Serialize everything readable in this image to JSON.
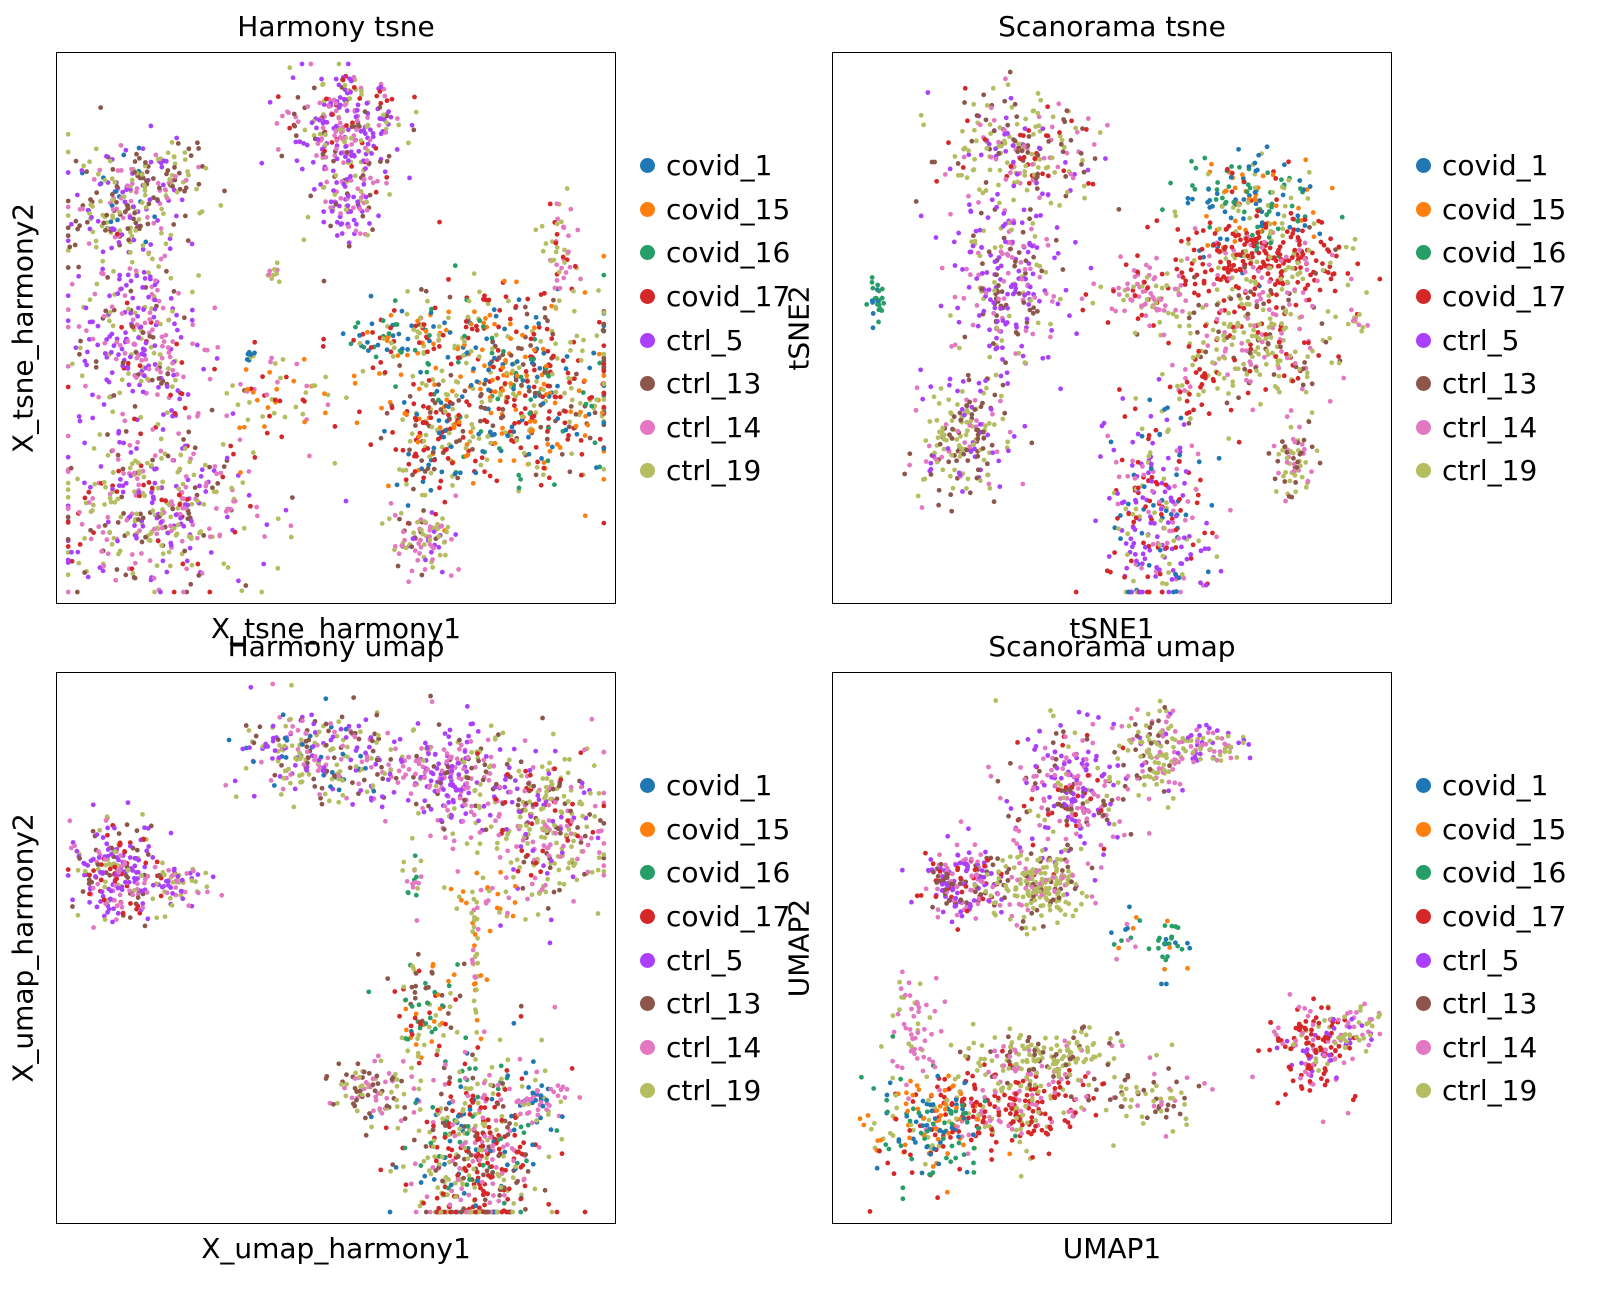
{
  "palette": {
    "covid_1": "#1f77b4",
    "covid_15": "#ff7f0e",
    "covid_16": "#279e68",
    "covid_17": "#d62728",
    "ctrl_5": "#aa40fc",
    "ctrl_13": "#8c564b",
    "ctrl_14": "#e377c2",
    "ctrl_19": "#b5bd61"
  },
  "chart_data": [
    {
      "type": "scatter",
      "title": "Harmony tsne",
      "xlabel": "X_tsne_harmony1",
      "ylabel": "X_tsne_harmony2",
      "grid": false,
      "ticks": false,
      "legend_position": "right",
      "legend": [
        "covid_1",
        "covid_15",
        "covid_16",
        "covid_17",
        "ctrl_5",
        "ctrl_13",
        "ctrl_14",
        "ctrl_19"
      ],
      "clusters": [
        {
          "x": 0.52,
          "y": 0.87,
          "sx": 0.05,
          "sy": 0.05,
          "n": 260,
          "mix": {
            "ctrl_5": 0.35,
            "ctrl_14": 0.25,
            "ctrl_19": 0.2,
            "ctrl_13": 0.1,
            "covid_17": 0.1
          }
        },
        {
          "x": 0.52,
          "y": 0.73,
          "sx": 0.03,
          "sy": 0.04,
          "n": 110,
          "mix": {
            "ctrl_5": 0.4,
            "ctrl_14": 0.3,
            "ctrl_19": 0.15,
            "ctrl_13": 0.15
          }
        },
        {
          "x": 0.11,
          "y": 0.72,
          "sx": 0.05,
          "sy": 0.06,
          "n": 200,
          "mix": {
            "ctrl_13": 0.3,
            "ctrl_19": 0.25,
            "ctrl_5": 0.2,
            "ctrl_14": 0.15,
            "covid_1": 0.1
          }
        },
        {
          "x": 0.18,
          "y": 0.77,
          "sx": 0.05,
          "sy": 0.03,
          "n": 90,
          "mix": {
            "ctrl_19": 0.4,
            "ctrl_13": 0.3,
            "ctrl_14": 0.2,
            "ctrl_5": 0.1
          }
        },
        {
          "x": 0.15,
          "y": 0.48,
          "sx": 0.06,
          "sy": 0.09,
          "n": 320,
          "mix": {
            "ctrl_5": 0.4,
            "ctrl_14": 0.25,
            "ctrl_13": 0.15,
            "ctrl_19": 0.15,
            "covid_17": 0.05
          }
        },
        {
          "x": 0.18,
          "y": 0.17,
          "sx": 0.09,
          "sy": 0.07,
          "n": 420,
          "mix": {
            "ctrl_19": 0.3,
            "ctrl_5": 0.25,
            "ctrl_14": 0.2,
            "ctrl_13": 0.15,
            "covid_17": 0.1
          }
        },
        {
          "x": 0.83,
          "y": 0.4,
          "sx": 0.1,
          "sy": 0.09,
          "n": 560,
          "mix": {
            "covid_17": 0.25,
            "covid_1": 0.15,
            "covid_15": 0.15,
            "covid_16": 0.1,
            "ctrl_19": 0.2,
            "ctrl_13": 0.15
          }
        },
        {
          "x": 0.63,
          "y": 0.48,
          "sx": 0.06,
          "sy": 0.03,
          "n": 120,
          "mix": {
            "covid_15": 0.25,
            "covid_16": 0.2,
            "covid_1": 0.2,
            "ctrl_19": 0.2,
            "covid_17": 0.15
          }
        },
        {
          "x": 0.68,
          "y": 0.3,
          "sx": 0.05,
          "sy": 0.06,
          "n": 160,
          "mix": {
            "covid_17": 0.3,
            "ctrl_19": 0.25,
            "covid_1": 0.15,
            "ctrl_13": 0.15,
            "covid_15": 0.15
          }
        },
        {
          "x": 0.66,
          "y": 0.11,
          "sx": 0.03,
          "sy": 0.03,
          "n": 90,
          "mix": {
            "ctrl_14": 0.35,
            "ctrl_19": 0.3,
            "ctrl_13": 0.2,
            "ctrl_5": 0.15
          }
        },
        {
          "x": 0.9,
          "y": 0.63,
          "sx": 0.02,
          "sy": 0.05,
          "n": 50,
          "mix": {
            "ctrl_14": 0.5,
            "ctrl_19": 0.3,
            "covid_17": 0.2
          }
        },
        {
          "x": 0.39,
          "y": 0.37,
          "sx": 0.06,
          "sy": 0.05,
          "n": 70,
          "mix": {
            "ctrl_19": 0.3,
            "covid_17": 0.25,
            "ctrl_14": 0.2,
            "covid_15": 0.25
          }
        },
        {
          "x": 0.39,
          "y": 0.6,
          "sx": 0.005,
          "sy": 0.01,
          "n": 10,
          "mix": {
            "ctrl_14": 0.5,
            "ctrl_19": 0.5
          }
        },
        {
          "x": 0.35,
          "y": 0.45,
          "sx": 0.005,
          "sy": 0.005,
          "n": 8,
          "mix": {
            "covid_1": 0.5,
            "ctrl_19": 0.5
          }
        }
      ]
    },
    {
      "type": "scatter",
      "title": "Scanorama tsne",
      "xlabel": "tSNE1",
      "ylabel": "tSNE2",
      "grid": false,
      "ticks": false,
      "legend_position": "right",
      "legend": [
        "covid_1",
        "covid_15",
        "covid_16",
        "covid_17",
        "ctrl_5",
        "ctrl_13",
        "ctrl_14",
        "ctrl_19"
      ],
      "clusters": [
        {
          "x": 0.33,
          "y": 0.82,
          "sx": 0.07,
          "sy": 0.05,
          "n": 260,
          "mix": {
            "ctrl_19": 0.3,
            "ctrl_14": 0.2,
            "ctrl_13": 0.2,
            "ctrl_5": 0.15,
            "covid_17": 0.15
          }
        },
        {
          "x": 0.31,
          "y": 0.58,
          "sx": 0.05,
          "sy": 0.08,
          "n": 260,
          "mix": {
            "ctrl_5": 0.45,
            "ctrl_13": 0.2,
            "ctrl_14": 0.2,
            "ctrl_19": 0.15
          }
        },
        {
          "x": 0.23,
          "y": 0.3,
          "sx": 0.04,
          "sy": 0.06,
          "n": 200,
          "mix": {
            "ctrl_19": 0.35,
            "ctrl_13": 0.25,
            "ctrl_14": 0.2,
            "ctrl_5": 0.2
          }
        },
        {
          "x": 0.75,
          "y": 0.73,
          "sx": 0.06,
          "sy": 0.05,
          "n": 200,
          "mix": {
            "covid_1": 0.3,
            "covid_16": 0.25,
            "covid_15": 0.2,
            "ctrl_19": 0.15,
            "covid_17": 0.1
          }
        },
        {
          "x": 0.78,
          "y": 0.62,
          "sx": 0.08,
          "sy": 0.035,
          "n": 260,
          "mix": {
            "covid_17": 0.7,
            "ctrl_19": 0.15,
            "ctrl_14": 0.15
          }
        },
        {
          "x": 0.76,
          "y": 0.49,
          "sx": 0.07,
          "sy": 0.07,
          "n": 300,
          "mix": {
            "ctrl_19": 0.45,
            "ctrl_14": 0.25,
            "ctrl_13": 0.15,
            "covid_17": 0.15
          }
        },
        {
          "x": 0.56,
          "y": 0.56,
          "sx": 0.04,
          "sy": 0.03,
          "n": 90,
          "mix": {
            "ctrl_14": 0.6,
            "covid_17": 0.2,
            "ctrl_19": 0.2
          }
        },
        {
          "x": 0.58,
          "y": 0.17,
          "sx": 0.05,
          "sy": 0.09,
          "n": 300,
          "mix": {
            "ctrl_5": 0.3,
            "covid_17": 0.25,
            "ctrl_19": 0.15,
            "ctrl_14": 0.15,
            "covid_1": 0.15
          }
        },
        {
          "x": 0.83,
          "y": 0.26,
          "sx": 0.02,
          "sy": 0.04,
          "n": 70,
          "mix": {
            "ctrl_19": 0.35,
            "ctrl_13": 0.35,
            "ctrl_14": 0.3
          }
        },
        {
          "x": 0.08,
          "y": 0.55,
          "sx": 0.007,
          "sy": 0.02,
          "n": 25,
          "mix": {
            "covid_16": 0.75,
            "covid_1": 0.25
          }
        },
        {
          "x": 0.94,
          "y": 0.51,
          "sx": 0.006,
          "sy": 0.01,
          "n": 12,
          "mix": {
            "ctrl_19": 0.6,
            "ctrl_14": 0.4
          }
        },
        {
          "x": 0.65,
          "y": 0.41,
          "sx": 0.03,
          "sy": 0.03,
          "n": 30,
          "mix": {
            "covid_17": 0.5,
            "ctrl_19": 0.5
          }
        }
      ]
    },
    {
      "type": "scatter",
      "title": "Harmony umap",
      "xlabel": "X_umap_harmony1",
      "ylabel": "X_umap_harmony2",
      "grid": false,
      "ticks": false,
      "legend_position": "right",
      "legend": [
        "covid_1",
        "covid_15",
        "covid_16",
        "covid_17",
        "ctrl_5",
        "ctrl_13",
        "ctrl_14",
        "ctrl_19"
      ],
      "clusters": [
        {
          "x": 0.11,
          "y": 0.64,
          "sx": 0.04,
          "sy": 0.045,
          "n": 250,
          "mix": {
            "ctrl_5": 0.35,
            "ctrl_14": 0.2,
            "covid_17": 0.15,
            "ctrl_13": 0.15,
            "ctrl_19": 0.15
          }
        },
        {
          "x": 0.22,
          "y": 0.62,
          "sx": 0.03,
          "sy": 0.02,
          "n": 60,
          "mix": {
            "ctrl_5": 0.4,
            "ctrl_19": 0.3,
            "ctrl_14": 0.3
          }
        },
        {
          "x": 0.48,
          "y": 0.85,
          "sx": 0.08,
          "sy": 0.04,
          "n": 280,
          "mix": {
            "ctrl_19": 0.3,
            "ctrl_14": 0.2,
            "ctrl_13": 0.2,
            "ctrl_5": 0.2,
            "covid_1": 0.1
          }
        },
        {
          "x": 0.72,
          "y": 0.81,
          "sx": 0.06,
          "sy": 0.05,
          "n": 280,
          "mix": {
            "ctrl_5": 0.35,
            "ctrl_14": 0.3,
            "ctrl_19": 0.2,
            "ctrl_13": 0.15
          }
        },
        {
          "x": 0.89,
          "y": 0.72,
          "sx": 0.05,
          "sy": 0.07,
          "n": 300,
          "mix": {
            "ctrl_19": 0.4,
            "ctrl_14": 0.25,
            "ctrl_13": 0.15,
            "covid_17": 0.1,
            "ctrl_5": 0.1
          }
        },
        {
          "x": 0.75,
          "y": 0.14,
          "sx": 0.06,
          "sy": 0.09,
          "n": 520,
          "mix": {
            "ctrl_19": 0.25,
            "covid_17": 0.25,
            "ctrl_13": 0.15,
            "ctrl_14": 0.15,
            "covid_1": 0.1,
            "covid_16": 0.1
          }
        },
        {
          "x": 0.56,
          "y": 0.24,
          "sx": 0.04,
          "sy": 0.03,
          "n": 90,
          "mix": {
            "ctrl_19": 0.35,
            "ctrl_13": 0.35,
            "ctrl_14": 0.3
          }
        },
        {
          "x": 0.87,
          "y": 0.23,
          "sx": 0.025,
          "sy": 0.025,
          "n": 60,
          "mix": {
            "ctrl_14": 0.5,
            "ctrl_19": 0.25,
            "covid_1": 0.25
          }
        },
        {
          "x": 0.65,
          "y": 0.4,
          "sx": 0.04,
          "sy": 0.05,
          "n": 90,
          "mix": {
            "covid_16": 0.2,
            "covid_15": 0.2,
            "ctrl_19": 0.2,
            "covid_17": 0.2,
            "ctrl_13": 0.2
          }
        },
        {
          "x": 0.76,
          "y": 0.59,
          "sx": 0.03,
          "sy": 0.03,
          "n": 40,
          "mix": {
            "ctrl_19": 0.4,
            "ctrl_14": 0.3,
            "covid_15": 0.3
          }
        },
        {
          "x": 0.75,
          "y": 0.48,
          "sx": 0.005,
          "sy": 0.06,
          "n": 30,
          "mix": {
            "ctrl_19": 0.5,
            "covid_15": 0.25,
            "ctrl_14": 0.25
          }
        },
        {
          "x": 0.64,
          "y": 0.63,
          "sx": 0.01,
          "sy": 0.03,
          "n": 20,
          "mix": {
            "ctrl_14": 0.5,
            "ctrl_19": 0.25,
            "covid_16": 0.25
          }
        }
      ]
    },
    {
      "type": "scatter",
      "title": "Scanorama umap",
      "xlabel": "UMAP1",
      "ylabel": "UMAP2",
      "grid": false,
      "ticks": false,
      "legend_position": "right",
      "legend": [
        "covid_1",
        "covid_15",
        "covid_16",
        "covid_17",
        "ctrl_5",
        "ctrl_13",
        "ctrl_14",
        "ctrl_19"
      ],
      "clusters": [
        {
          "x": 0.42,
          "y": 0.78,
          "sx": 0.05,
          "sy": 0.07,
          "n": 280,
          "mix": {
            "ctrl_5": 0.3,
            "ctrl_14": 0.3,
            "covid_17": 0.15,
            "ctrl_13": 0.15,
            "ctrl_19": 0.1
          }
        },
        {
          "x": 0.57,
          "y": 0.85,
          "sx": 0.03,
          "sy": 0.04,
          "n": 120,
          "mix": {
            "ctrl_19": 0.4,
            "ctrl_14": 0.3,
            "ctrl_13": 0.2,
            "ctrl_5": 0.1
          }
        },
        {
          "x": 0.66,
          "y": 0.87,
          "sx": 0.04,
          "sy": 0.02,
          "n": 80,
          "mix": {
            "ctrl_19": 0.4,
            "ctrl_14": 0.3,
            "ctrl_5": 0.3
          }
        },
        {
          "x": 0.23,
          "y": 0.62,
          "sx": 0.04,
          "sy": 0.035,
          "n": 200,
          "mix": {
            "ctrl_5": 0.3,
            "ctrl_14": 0.25,
            "ctrl_13": 0.25,
            "covid_17": 0.2
          }
        },
        {
          "x": 0.37,
          "y": 0.61,
          "sx": 0.04,
          "sy": 0.03,
          "n": 200,
          "mix": {
            "ctrl_19": 0.7,
            "ctrl_14": 0.15,
            "ctrl_13": 0.15
          }
        },
        {
          "x": 0.32,
          "y": 0.21,
          "sx": 0.07,
          "sy": 0.04,
          "n": 250,
          "mix": {
            "covid_17": 0.6,
            "ctrl_19": 0.2,
            "ctrl_14": 0.2
          }
        },
        {
          "x": 0.17,
          "y": 0.17,
          "sx": 0.05,
          "sy": 0.05,
          "n": 200,
          "mix": {
            "covid_16": 0.3,
            "covid_15": 0.25,
            "covid_1": 0.2,
            "covid_17": 0.15,
            "ctrl_19": 0.1
          }
        },
        {
          "x": 0.38,
          "y": 0.3,
          "sx": 0.08,
          "sy": 0.025,
          "n": 180,
          "mix": {
            "ctrl_19": 0.6,
            "ctrl_14": 0.2,
            "ctrl_13": 0.2
          }
        },
        {
          "x": 0.15,
          "y": 0.36,
          "sx": 0.02,
          "sy": 0.06,
          "n": 60,
          "mix": {
            "ctrl_14": 0.8,
            "ctrl_19": 0.2
          }
        },
        {
          "x": 0.56,
          "y": 0.22,
          "sx": 0.05,
          "sy": 0.03,
          "n": 70,
          "mix": {
            "ctrl_19": 0.35,
            "ctrl_13": 0.35,
            "ctrl_14": 0.3
          }
        },
        {
          "x": 0.86,
          "y": 0.32,
          "sx": 0.04,
          "sy": 0.04,
          "n": 160,
          "mix": {
            "covid_17": 0.45,
            "ctrl_14": 0.25,
            "ctrl_5": 0.15,
            "ctrl_19": 0.15
          }
        },
        {
          "x": 0.94,
          "y": 0.35,
          "sx": 0.025,
          "sy": 0.02,
          "n": 50,
          "mix": {
            "ctrl_19": 0.4,
            "ctrl_14": 0.4,
            "ctrl_5": 0.2
          }
        },
        {
          "x": 0.6,
          "y": 0.5,
          "sx": 0.015,
          "sy": 0.03,
          "n": 30,
          "mix": {
            "covid_16": 0.7,
            "covid_1": 0.2,
            "covid_15": 0.1
          }
        },
        {
          "x": 0.52,
          "y": 0.52,
          "sx": 0.02,
          "sy": 0.02,
          "n": 15,
          "mix": {
            "covid_16": 0.3,
            "ctrl_14": 0.3,
            "covid_1": 0.2,
            "covid_15": 0.2
          }
        }
      ]
    }
  ]
}
